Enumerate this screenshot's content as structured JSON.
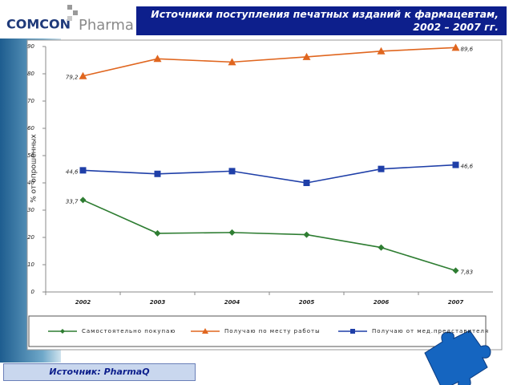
{
  "logo": {
    "brand": "COMCON",
    "product": "Pharma"
  },
  "source": "Источник: PharmaQ",
  "chart_data": {
    "type": "line",
    "title": "Источники поступления печатных изданий к фармацевтам,\n2002 – 2007 гг.",
    "y_label": "% от опрошенных",
    "categories": [
      "2002",
      "2003",
      "2004",
      "2005",
      "2006",
      "2007"
    ],
    "ylim": [
      0,
      90
    ],
    "yticks": [
      0,
      10,
      20,
      30,
      40,
      50,
      60,
      70,
      80,
      90
    ],
    "grid": false,
    "legend": "bottom",
    "series": [
      {
        "name": "Самостоятельно покупаю",
        "color": "#2e7d32",
        "marker": "diamond",
        "values": [
          33.7,
          21.5,
          21.8,
          21,
          16.3,
          7.83
        ],
        "value_labels": [
          "33,7",
          null,
          null,
          null,
          null,
          "7,83"
        ]
      },
      {
        "name": "Получаю по месту работы",
        "color": "#e0661f",
        "marker": "triangle",
        "values": [
          79.2,
          85.5,
          84.3,
          86.2,
          88.3,
          89.6
        ],
        "value_labels": [
          "79,2",
          null,
          null,
          null,
          null,
          "89,6"
        ]
      },
      {
        "name": "Получаю от мед.представителя",
        "color": "#1f3fa8",
        "marker": "square",
        "values": [
          44.6,
          43.3,
          44.3,
          40,
          45.1,
          46.6
        ],
        "value_labels": [
          "44,6",
          null,
          null,
          null,
          null,
          "46,6"
        ]
      }
    ]
  }
}
